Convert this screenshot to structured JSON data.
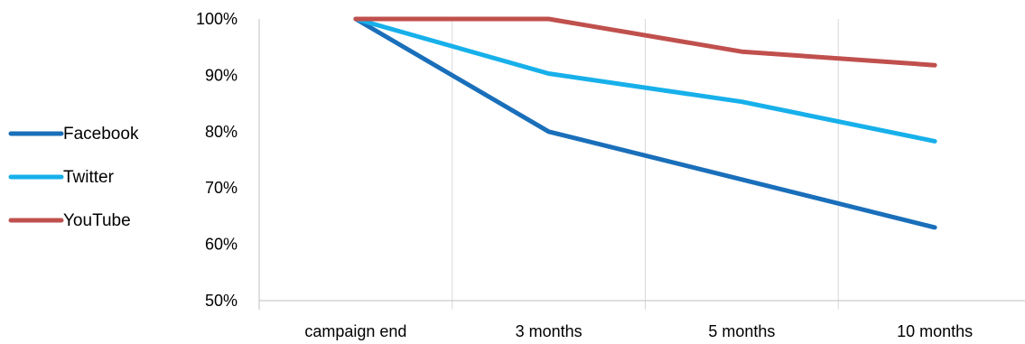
{
  "chart_data": {
    "type": "line",
    "title": "",
    "xlabel": "",
    "ylabel": "",
    "categories": [
      "campaign end",
      "3 months",
      "5 months",
      "10 months"
    ],
    "x_positions": [
      0.5,
      1.5,
      2.5,
      3.5
    ],
    "ylim": [
      50,
      100
    ],
    "y_ticks": [
      50,
      60,
      70,
      80,
      90,
      100
    ],
    "y_tick_labels": [
      "50%",
      "60%",
      "70%",
      "80%",
      "90%",
      "100%"
    ],
    "grid": "vertical",
    "legend_position": "left",
    "series": [
      {
        "name": "Facebook",
        "color": "#1a6fba",
        "points": [
          [
            0.5,
            100
          ],
          [
            1.5,
            80
          ],
          [
            2.5,
            71.5
          ],
          [
            3.5,
            63
          ]
        ]
      },
      {
        "name": "Twitter",
        "color": "#17b0ea",
        "points": [
          [
            0.5,
            100
          ],
          [
            1.5,
            90.3
          ],
          [
            2.5,
            85.3
          ],
          [
            3.5,
            78.3
          ]
        ]
      },
      {
        "name": "YouTube",
        "color": "#c0504d",
        "points": [
          [
            0.5,
            100
          ],
          [
            1.5,
            100
          ],
          [
            2.5,
            94.2
          ],
          [
            3.5,
            91.8
          ]
        ]
      }
    ]
  }
}
